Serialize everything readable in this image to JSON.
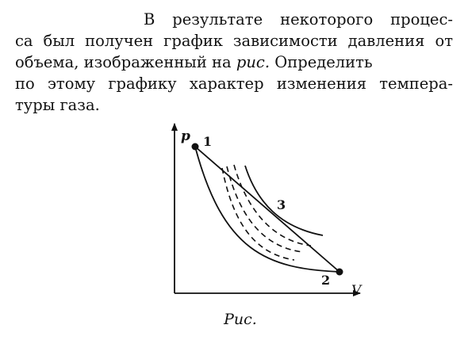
{
  "problem": {
    "line1": "В результате некоторого процес-",
    "line2": "са был получен график зависимости давления от",
    "line3_before": "объема, изображенный на ",
    "line3_emph": "рис.",
    "line3_after": " Определить",
    "line4": "по этому графику характер изменения темпера-",
    "line5": "туры газа."
  },
  "figure": {
    "axis_y_label": "p",
    "axis_x_label": "V",
    "point_1_label": "1",
    "point_2_label": "2",
    "point_3_label": "3",
    "caption": "Рис.",
    "ink_color": "#111111"
  }
}
